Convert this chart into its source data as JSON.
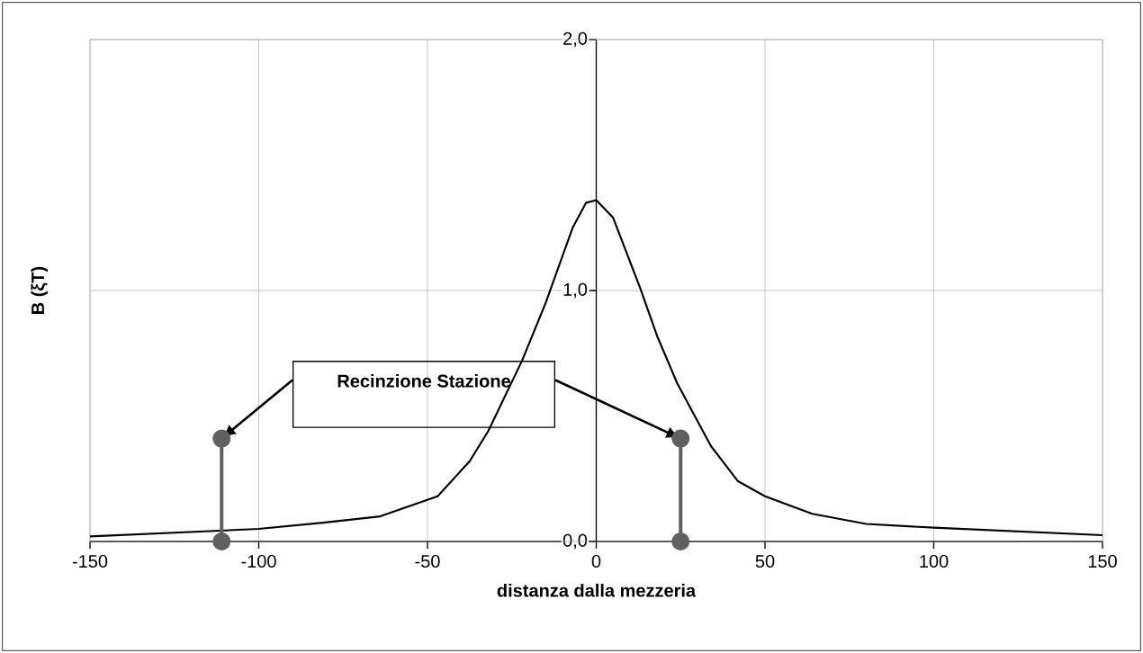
{
  "chart_data": {
    "type": "line",
    "xlabel": "distanza dalla mezzeria",
    "ylabel": "B (ξT)",
    "xlim": [
      -150,
      150
    ],
    "xticks": [
      -150,
      -100,
      -50,
      0,
      50,
      100,
      150
    ],
    "ylim": [
      0,
      2
    ],
    "yticks": [
      {
        "value": 0,
        "label": "0,0"
      },
      {
        "value": 1,
        "label": "1,0"
      },
      {
        "value": 2,
        "label": "2,0"
      }
    ],
    "grid": true,
    "annotations": [
      "Recinzione Stazione"
    ],
    "series": [
      {
        "color": "#000000",
        "marker": "none",
        "x": [
          -150,
          -100,
          -81,
          -64,
          -47,
          -37.5,
          -32,
          -22,
          -15,
          -7,
          -3,
          0,
          5,
          13,
          18,
          24,
          34,
          42,
          50,
          64,
          80,
          100,
          150
        ],
        "values": [
          0.02,
          0.05,
          0.075,
          0.1,
          0.18,
          0.32,
          0.44,
          0.72,
          0.95,
          1.25,
          1.35,
          1.36,
          1.29,
          1.01,
          0.82,
          0.63,
          0.38,
          0.24,
          0.18,
          0.11,
          0.07,
          0.055,
          0.025
        ]
      },
      {
        "color": "#606060",
        "marker": "circle",
        "x": [
          -111,
          -111,
          null,
          25,
          25
        ],
        "values": [
          0,
          0.41,
          null,
          0,
          0.41
        ]
      }
    ]
  }
}
